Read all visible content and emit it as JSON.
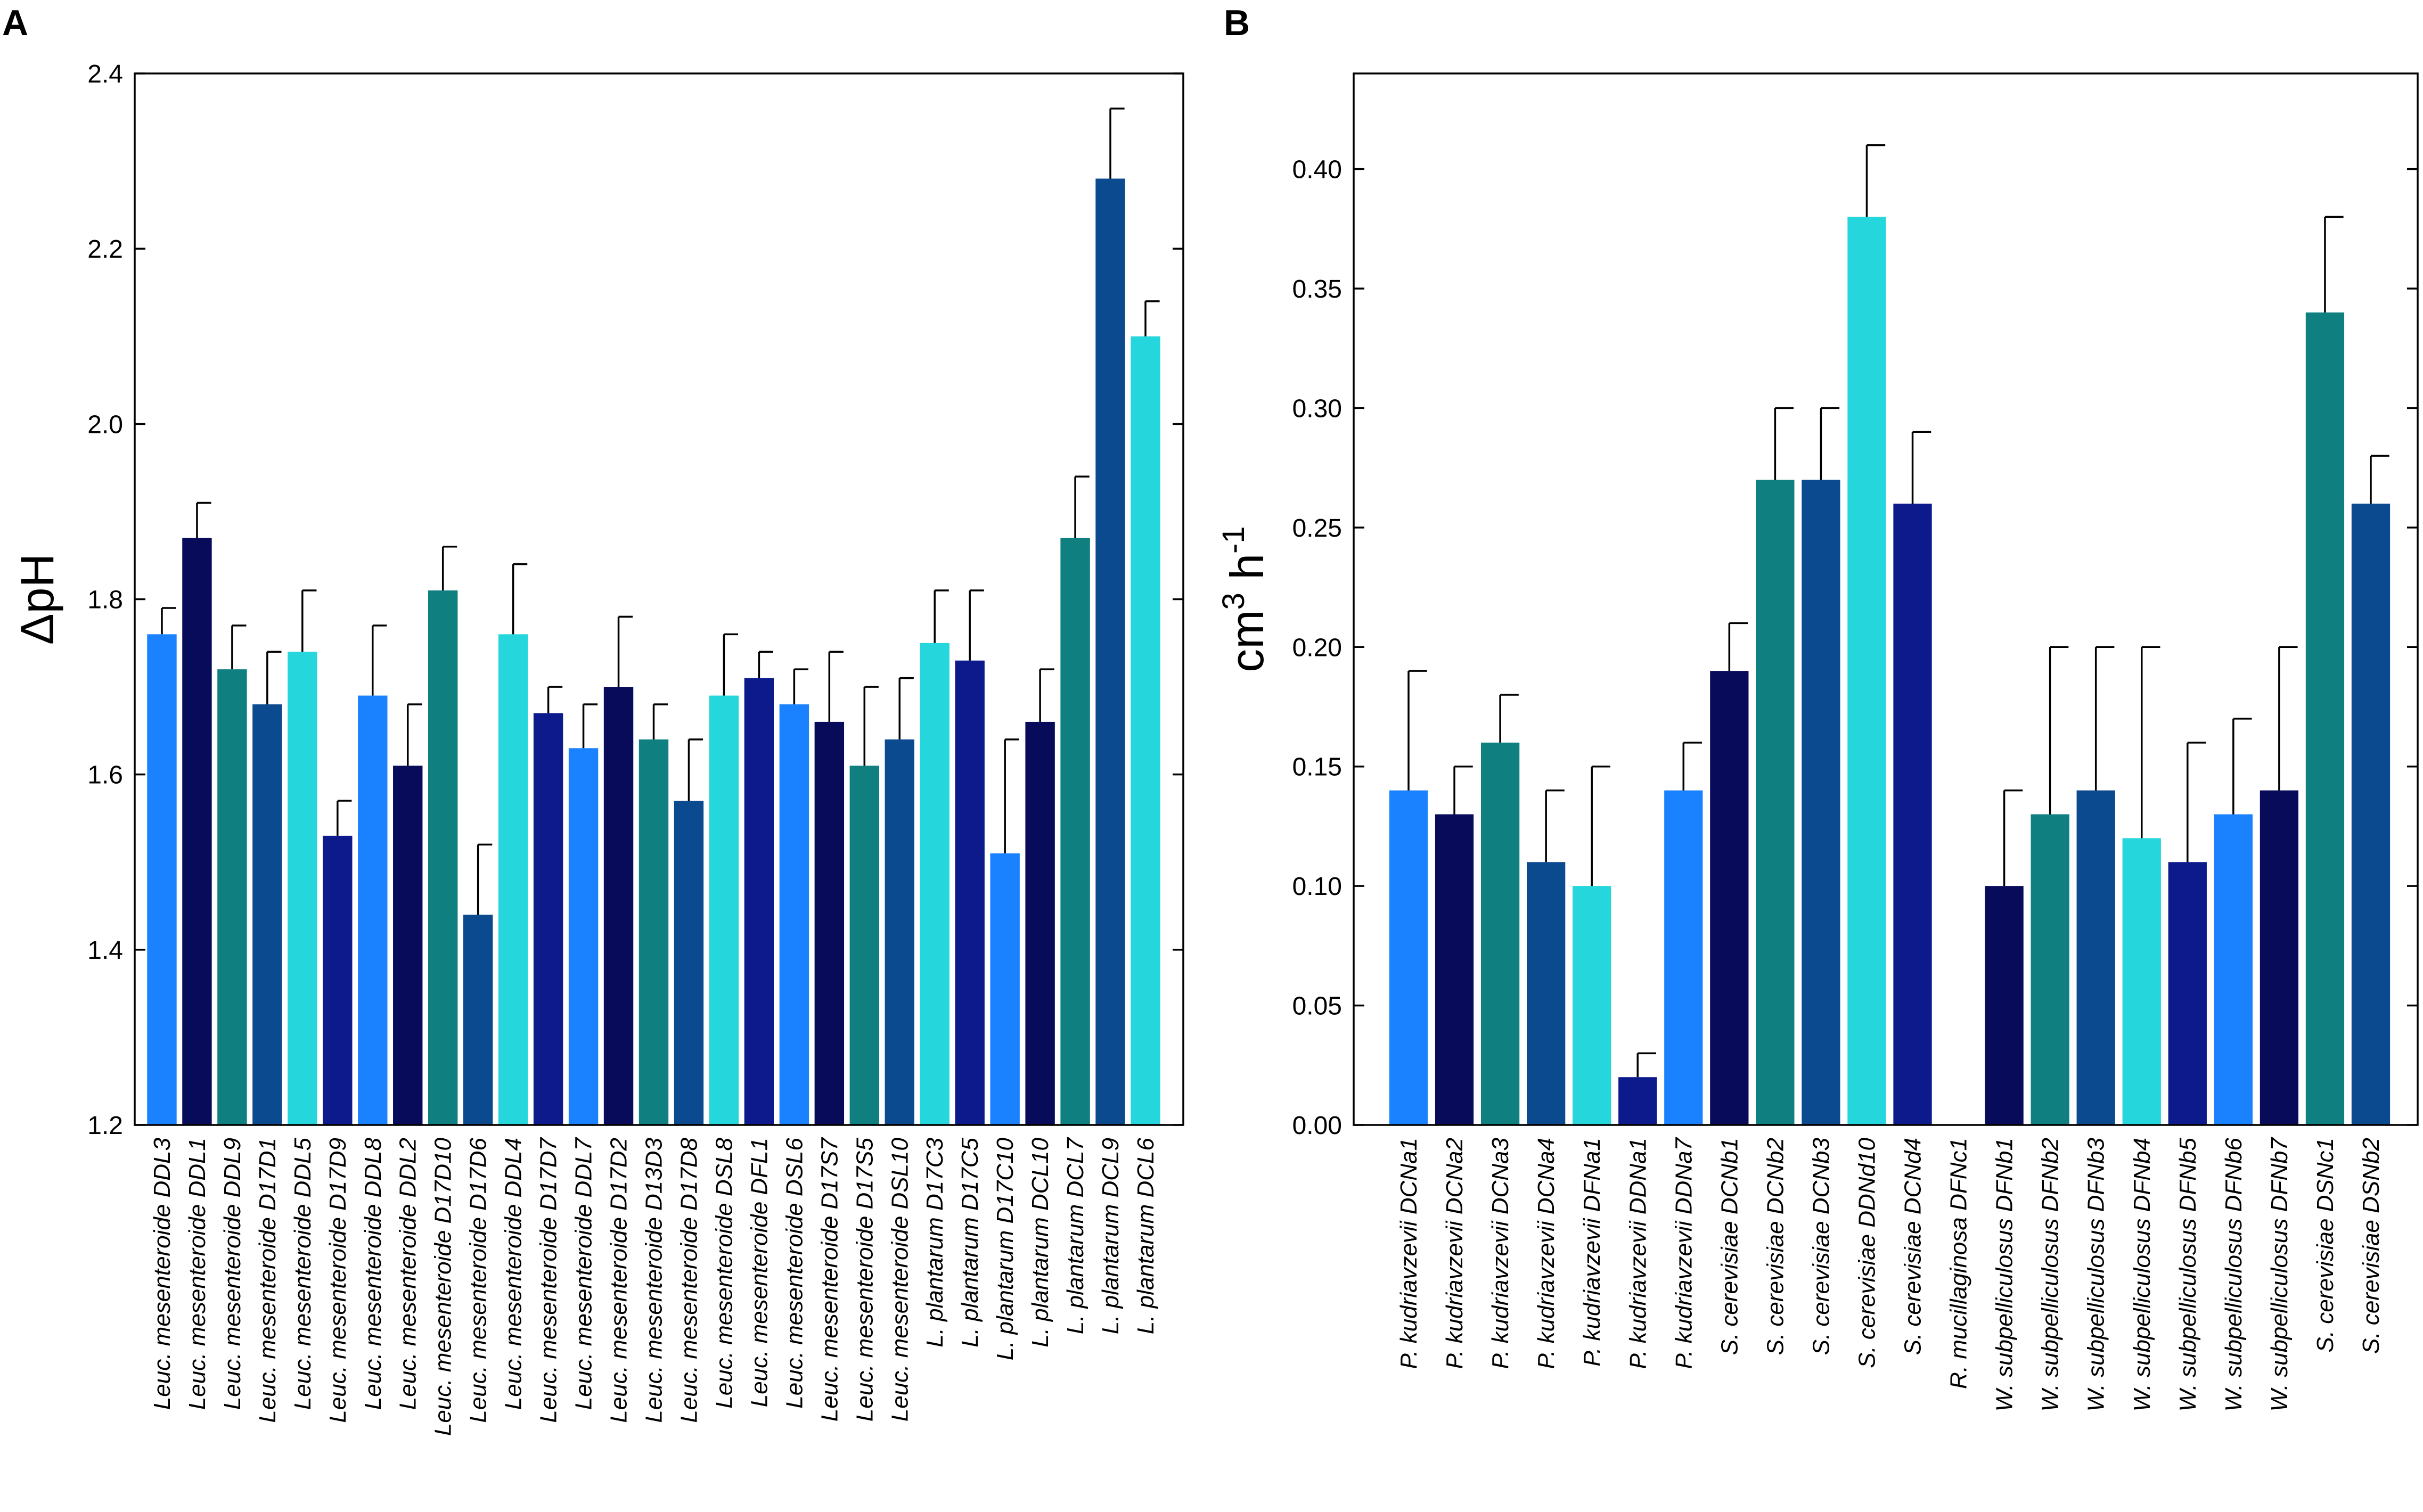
{
  "chart_data": [
    {
      "type": "bar",
      "panel": "A",
      "ylabel": "ΔpH",
      "ylim": [
        1.2,
        2.4
      ],
      "yticks": [
        "1.2",
        "1.4",
        "1.6",
        "1.8",
        "2.0",
        "2.2",
        "2.4"
      ],
      "yticks_num": [
        1.2,
        1.4,
        1.6,
        1.8,
        2.0,
        2.2,
        2.4
      ],
      "grid": false,
      "categories": [
        "Leuc. mesenteroide DDL3",
        "Leuc. mesenteroide DDL1",
        "Leuc. mesenteroide DDL9",
        "Leuc. mesenteroide D17D1",
        "Leuc. mesenteroide DDL5",
        "Leuc. mesenteroide D17D9",
        "Leuc. mesenteroide DDL8",
        "Leuc. mesenteroide DDL2",
        "Leuc. mesenteroide D17D10",
        "Leuc. mesenteroide D17D6",
        "Leuc. mesenteroide DDL4",
        "Leuc. mesenteroide D17D7",
        "Leuc. mesenteroide DDL7",
        "Leuc. mesenteroide D17D2",
        "Leuc. mesenteroide D13D3",
        "Leuc. mesenteroide D17D8",
        "Leuc. mesenteroide DSL8",
        "Leuc. mesenteroide DFL1",
        "Leuc. mesenteroide DSL6",
        "Leuc. mesenteroide D17S7",
        "Leuc. mesenteroide D17S5",
        "Leuc. mesenteroide DSL10",
        "L. plantarum D17C3",
        "L. plantarum D17C5",
        "L. plantarum D17C10",
        "L. plantarum DCL10",
        "L. plantarum DCL7",
        "L. plantarum DCL9",
        "L. plantarum DCL6"
      ],
      "values": [
        1.76,
        1.87,
        1.72,
        1.68,
        1.74,
        1.53,
        1.69,
        1.61,
        1.81,
        1.44,
        1.76,
        1.67,
        1.63,
        1.7,
        1.64,
        1.57,
        1.69,
        1.71,
        1.68,
        1.66,
        1.61,
        1.64,
        1.75,
        1.73,
        1.51,
        1.66,
        1.87,
        2.28,
        2.1
      ],
      "errors": [
        0.03,
        0.04,
        0.05,
        0.06,
        0.07,
        0.04,
        0.08,
        0.07,
        0.05,
        0.08,
        0.08,
        0.03,
        0.05,
        0.08,
        0.04,
        0.07,
        0.07,
        0.03,
        0.04,
        0.08,
        0.09,
        0.07,
        0.06,
        0.08,
        0.13,
        0.06,
        0.07,
        0.08,
        0.04
      ],
      "colors": [
        "#1a82ff",
        "#070b5a",
        "#0f7f80",
        "#0b4a8f",
        "#26d6dd",
        "#0c1a8c",
        "#1a82ff",
        "#070b5a",
        "#0f7f80",
        "#0b4a8f",
        "#26d6dd",
        "#0c1a8c",
        "#1a82ff",
        "#070b5a",
        "#0f7f80",
        "#0b4a8f",
        "#26d6dd",
        "#0c1a8c",
        "#1a82ff",
        "#070b5a",
        "#0f7f80",
        "#0b4a8f",
        "#26d6dd",
        "#0c1a8c",
        "#1a82ff",
        "#070b5a",
        "#0f7f80",
        "#0b4a8f",
        "#26d6dd"
      ]
    },
    {
      "type": "bar",
      "panel": "B",
      "ylabel": "cm",
      "ylabel_sup1": "3",
      "ylabel_mid": " h",
      "ylabel_sup2": "-1",
      "ylim": [
        0,
        0.44
      ],
      "yticks": [
        "0.00",
        "0.05",
        "0.10",
        "0.15",
        "0.20",
        "0.25",
        "0.30",
        "0.35",
        "0.40"
      ],
      "yticks_num": [
        0,
        0.05,
        0.1,
        0.15,
        0.2,
        0.25,
        0.3,
        0.35,
        0.4
      ],
      "grid": false,
      "categories": [
        "P. kudriavzevii DCNa1",
        "P. kudriavzevii DCNa2",
        "P. kudriavzevii DCNa3",
        "P. kudriavzevii DCNa4",
        "P. kudriavzevii DFNa1",
        "P. kudriavzevii DDNa1",
        "P. kudriavzevii DDNa7",
        "S. cerevisiae DCNb1",
        "S. cerevisiae DCNb2",
        "S. cerevisiae DCNb3",
        "S. cerevisiae DDNd10",
        "S. cerevisiae DCNd4",
        "R. mucillaginosa DFNc1",
        "W. subpelliculosus DFNb1",
        "W. subpelliculosus DFNb2",
        "W. subpelliculosus DFNb3",
        "W. subpelliculosus DFNb4",
        "W. subpelliculosus DFNb5",
        "W. subpelliculosus DFNb6",
        "W. subpelliculosus DFNb7",
        "S. cerevisiae DSNc1",
        "S. cerevisiae DSNb2"
      ],
      "values": [
        0.14,
        0.13,
        0.16,
        0.11,
        0.1,
        0.02,
        0.14,
        0.19,
        0.27,
        0.27,
        0.38,
        0.26,
        0,
        0.1,
        0.13,
        0.14,
        0.12,
        0.11,
        0.13,
        0.14,
        0.34,
        0.26
      ],
      "errors": [
        0.05,
        0.02,
        0.02,
        0.03,
        0.05,
        0.01,
        0.02,
        0.02,
        0.03,
        0.03,
        0.03,
        0.03,
        0,
        0.04,
        0.07,
        0.06,
        0.08,
        0.05,
        0.04,
        0.06,
        0.04,
        0.02
      ],
      "colors": [
        "#1a82ff",
        "#070b5a",
        "#0f7f80",
        "#0b4a8f",
        "#26d6dd",
        "#0c1a8c",
        "#1a82ff",
        "#070b5a",
        "#0f7f80",
        "#0b4a8f",
        "#26d6dd",
        "#0c1a8c",
        "#ffffff",
        "#070b5a",
        "#0f7f80",
        "#0b4a8f",
        "#26d6dd",
        "#0c1a8c",
        "#1a82ff",
        "#070b5a",
        "#0f7f80",
        "#0b4a8f"
      ]
    }
  ]
}
